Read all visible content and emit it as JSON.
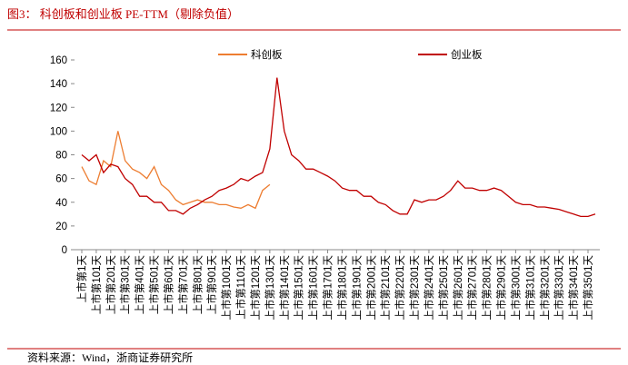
{
  "chart_data": {
    "type": "line",
    "title": "图3：  科创板和创业板 PE-TTM（剔除负值）",
    "source": "资料来源：Wind，浙商证券研究所",
    "categories": [
      "上市第1天",
      null,
      "上市第101天",
      null,
      "上市第201天",
      null,
      "上市第301天",
      null,
      "上市第401天",
      null,
      "上市第501天",
      null,
      "上市第601天",
      null,
      "上市第701天",
      null,
      "上市第801天",
      null,
      "上市第901天",
      null,
      "上市第1001天",
      null,
      "上市第1101天",
      null,
      "上市第1201天",
      null,
      "上市第1301天",
      null,
      "上市第1401天",
      null,
      "上市第1501天",
      null,
      "上市第1601天",
      null,
      "上市第1701天",
      null,
      "上市第1801天",
      null,
      "上市第1901天",
      null,
      "上市第2001天",
      null,
      "上市第2101天",
      null,
      "上市第2201天",
      null,
      "上市第2301天",
      null,
      "上市第2401天",
      null,
      "上市第2501天",
      null,
      "上市第2601天",
      null,
      "上市第2701天",
      null,
      "上市第2801天",
      null,
      "上市第2901天",
      null,
      "上市第3001天",
      null,
      "上市第3101天",
      null,
      "上市第3201天",
      null,
      "上市第3301天",
      null,
      "上市第3401天",
      null,
      "上市第3501天",
      null
    ],
    "series": [
      {
        "name": "科创板",
        "color": "#ed7d31",
        "values": [
          70,
          58,
          55,
          75,
          70,
          100,
          75,
          68,
          65,
          60,
          70,
          55,
          50,
          42,
          38,
          40,
          42,
          40,
          40,
          38,
          38,
          36,
          35,
          38,
          35,
          50,
          55,
          null,
          null,
          null,
          null,
          null,
          null,
          null,
          null,
          null,
          null,
          null,
          null,
          null,
          null,
          null,
          null,
          null,
          null,
          null,
          null,
          null,
          null,
          null,
          null,
          null,
          null,
          null,
          null,
          null,
          null,
          null,
          null,
          null,
          null,
          null,
          null,
          null,
          null,
          null,
          null,
          null,
          null,
          null,
          null,
          null
        ]
      },
      {
        "name": "创业板",
        "color": "#c00000",
        "values": [
          80,
          75,
          80,
          65,
          72,
          70,
          60,
          55,
          45,
          45,
          40,
          40,
          33,
          33,
          30,
          35,
          38,
          42,
          45,
          50,
          52,
          55,
          60,
          58,
          62,
          65,
          85,
          145,
          100,
          80,
          75,
          68,
          68,
          65,
          62,
          58,
          52,
          50,
          50,
          45,
          45,
          40,
          38,
          33,
          30,
          30,
          42,
          40,
          42,
          42,
          45,
          50,
          58,
          52,
          52,
          50,
          50,
          52,
          50,
          45,
          40,
          38,
          38,
          36,
          36,
          35,
          34,
          32,
          30,
          28,
          28,
          30
        ]
      }
    ],
    "ylim": [
      0,
      160
    ],
    "yticks": [
      0,
      20,
      40,
      60,
      80,
      100,
      120,
      140,
      160
    ]
  }
}
